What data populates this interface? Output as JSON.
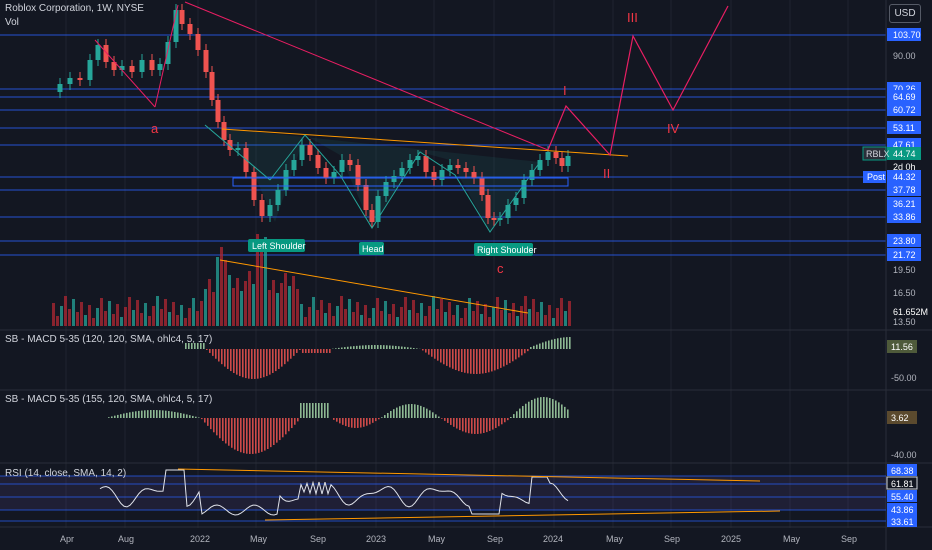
{
  "header": {
    "title": "Roblox Corporation, 1W, NYSE",
    "vol_label": "Vol",
    "currency_button": "USD"
  },
  "price_axis": {
    "labels": [
      "103.70",
      "90.00",
      "70.26",
      "64.69",
      "60.72",
      "53.11",
      "47.61",
      "44.74",
      "2d 0h",
      "44.32",
      "37.78",
      "36.21",
      "33.86",
      "23.80",
      "21.72",
      "19.50",
      "16.50",
      "61.652M",
      "13.50"
    ],
    "ticker_tag": "RBLX",
    "post_tag": "Post"
  },
  "levels": [
    103.7,
    70.26,
    64.69,
    60.72,
    53.11,
    47.61,
    44.32,
    37.78,
    33.86,
    23.8,
    21.72
  ],
  "time_axis": [
    "Apr",
    "Aug",
    "2022",
    "May",
    "Sep",
    "2023",
    "May",
    "Sep",
    "2024",
    "May",
    "Sep",
    "2025",
    "May",
    "Sep"
  ],
  "annotations": {
    "wave_a": "a",
    "wave_c": "c",
    "wave_I": "I",
    "wave_II": "II",
    "wave_III": "III",
    "wave_IV": "IV",
    "left_shoulder": "Left Shoulder",
    "head": "Head",
    "right_shoulder": "Right Shoulder"
  },
  "indicators": {
    "macd1": {
      "title": "SB - MACD 5-35 (120, 120, SMA, ohlc4, 5, 17)",
      "value": "11.56",
      "axis": "-50.00"
    },
    "macd2": {
      "title": "SB - MACD 5-35 (155, 120, SMA, ohlc4, 5, 17)",
      "value": "3.62",
      "axis": "-40.00"
    },
    "rsi": {
      "title": "RSI (14, close, SMA, 14, 2)",
      "levels": [
        "68.38",
        "61.81",
        "55.40",
        "43.86",
        "33.61"
      ]
    }
  },
  "colors": {
    "background": "#131722",
    "up": "#26a69a",
    "down": "#ef5350",
    "level_line": "#2962ff",
    "trend_red": "#e91e63",
    "trend_orange": "#ff9800",
    "rsi_band": "#7e57c2"
  }
}
